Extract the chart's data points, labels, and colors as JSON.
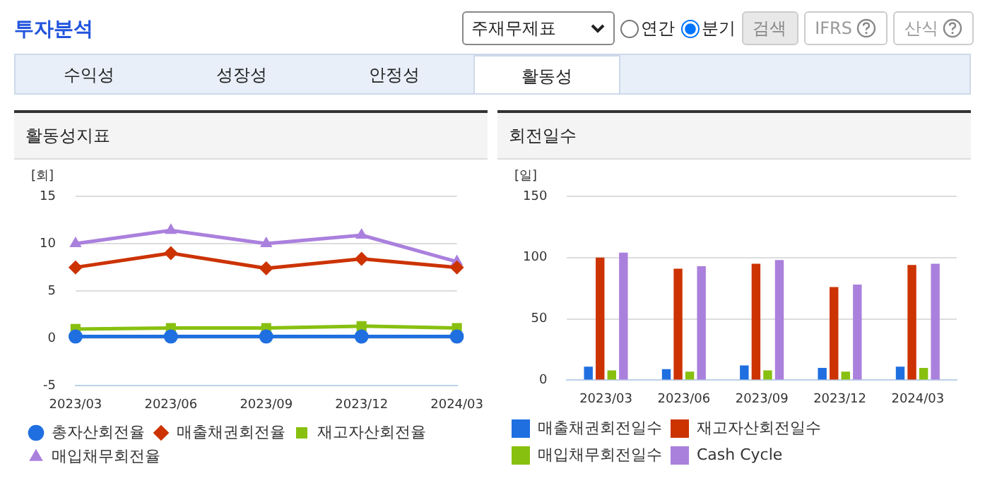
{
  "chart_data": [
    {
      "type": "other",
      "title": "투자분석",
      "annotations": [
        "주재무제표",
        "연간",
        "분기",
        "검색",
        "IFRS",
        "산식",
        "수익성",
        "성장성",
        "안정성",
        "활동성"
      ]
    },
    {
      "type": "line",
      "title": "활동성지표",
      "ylabel": "[회]",
      "categories": [
        "2023/03",
        "2023/06",
        "2023/09",
        "2023/12",
        "2024/03"
      ],
      "ylim": [
        -5,
        15
      ],
      "yticks": [
        -5,
        0,
        5,
        10,
        15
      ],
      "grid": "y",
      "legend": "bottom",
      "series": [
        {
          "name": "총자산회전율",
          "color": "#1f6fe0",
          "marker": "circle",
          "values": [
            0.2,
            0.2,
            0.2,
            0.2,
            0.2
          ]
        },
        {
          "name": "매출채권회전율",
          "color": "#cc3300",
          "marker": "diamond",
          "values": [
            7.5,
            9.0,
            7.4,
            8.4,
            7.5
          ]
        },
        {
          "name": "재고자산회전율",
          "color": "#88c010",
          "marker": "square",
          "values": [
            1.0,
            1.1,
            1.1,
            1.3,
            1.1
          ]
        },
        {
          "name": "매입채무회전율",
          "color": "#aa80dd",
          "marker": "triangle",
          "values": [
            10.0,
            11.4,
            10.0,
            10.9,
            8.1
          ]
        }
      ]
    },
    {
      "type": "bar",
      "title": "회전일수",
      "ylabel": "[일]",
      "categories": [
        "2023/03",
        "2023/06",
        "2023/09",
        "2023/12",
        "2024/03"
      ],
      "ylim": [
        0,
        150
      ],
      "yticks": [
        0,
        50,
        100,
        150
      ],
      "grid": "y",
      "legend": "bottom",
      "series": [
        {
          "name": "매출채권회전일수",
          "color": "#1f6fe0",
          "values": [
            11,
            9,
            12,
            10,
            11
          ]
        },
        {
          "name": "재고자산회전일수",
          "color": "#cc3300",
          "values": [
            100,
            91,
            95,
            76,
            94
          ]
        },
        {
          "name": "매입채무회전일수",
          "color": "#88c010",
          "values": [
            8,
            7,
            8,
            7,
            10
          ]
        },
        {
          "name": "Cash Cycle",
          "color": "#aa80dd",
          "values": [
            104,
            93,
            98,
            78,
            95
          ]
        }
      ]
    }
  ]
}
